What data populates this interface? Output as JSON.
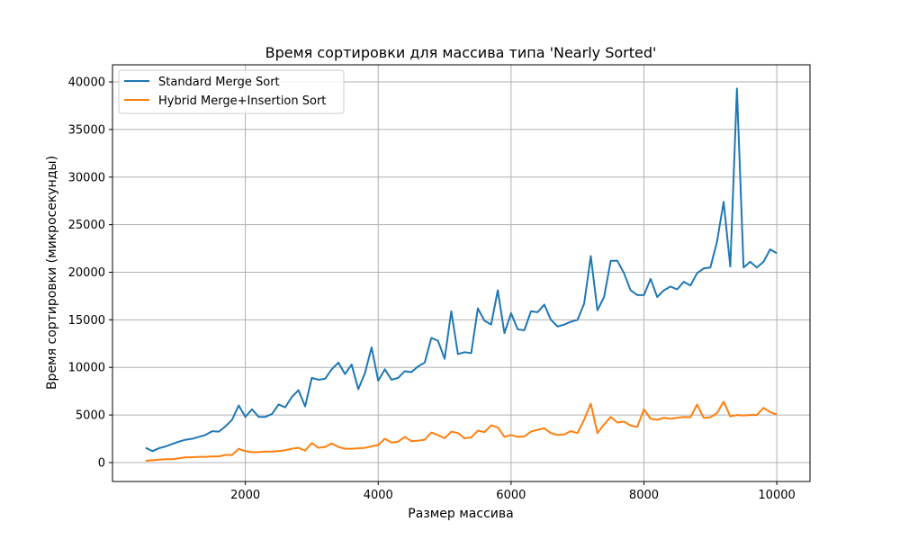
{
  "chart_data": {
    "type": "line",
    "title": "Время сортировки для массива типа 'Nearly Sorted'",
    "xlabel": "Размер массива",
    "ylabel": "Время сортировки (микросекунды)",
    "xlim": [
      0,
      10500
    ],
    "ylim": [
      -1990,
      41800
    ],
    "xticks": [
      2000,
      4000,
      6000,
      8000,
      10000
    ],
    "yticks": [
      0,
      5000,
      10000,
      15000,
      20000,
      25000,
      30000,
      35000,
      40000
    ],
    "grid": true,
    "legend_position": "top-left",
    "x": [
      500,
      600,
      700,
      800,
      900,
      1000,
      1100,
      1200,
      1300,
      1400,
      1500,
      1600,
      1700,
      1800,
      1900,
      2000,
      2100,
      2200,
      2300,
      2400,
      2500,
      2600,
      2700,
      2800,
      2900,
      3000,
      3100,
      3200,
      3300,
      3400,
      3500,
      3600,
      3700,
      3800,
      3900,
      4000,
      4100,
      4200,
      4300,
      4400,
      4500,
      4600,
      4700,
      4800,
      4900,
      5000,
      5100,
      5200,
      5300,
      5400,
      5500,
      5600,
      5700,
      5800,
      5900,
      6000,
      6100,
      6200,
      6300,
      6400,
      6500,
      6600,
      6700,
      6800,
      6900,
      7000,
      7100,
      7200,
      7300,
      7400,
      7500,
      7600,
      7700,
      7800,
      7900,
      8000,
      8100,
      8200,
      8300,
      8400,
      8500,
      8600,
      8700,
      8800,
      8900,
      9000,
      9100,
      9200,
      9300,
      9400,
      9500,
      9600,
      9700,
      9800,
      9900,
      10000
    ],
    "series": [
      {
        "name": "Standard Merge Sort",
        "color": "#1f77b4",
        "values": [
          1550,
          1200,
          1500,
          1700,
          1950,
          2200,
          2400,
          2500,
          2700,
          2900,
          3300,
          3250,
          3800,
          4500,
          6000,
          4800,
          5600,
          4800,
          4800,
          5100,
          6100,
          5800,
          6900,
          7600,
          5900,
          8900,
          8700,
          8800,
          9800,
          10500,
          9300,
          10300,
          7700,
          9400,
          12100,
          8600,
          9800,
          8700,
          8900,
          9600,
          9500,
          10100,
          10500,
          13100,
          12800,
          10900,
          15900,
          11400,
          11600,
          11500,
          16200,
          14900,
          14500,
          18100,
          13600,
          15700,
          14000,
          13900,
          15900,
          15800,
          16600,
          15000,
          14300,
          14500,
          14800,
          15000,
          16700,
          21700,
          16000,
          17400,
          21200,
          21200,
          19900,
          18100,
          17600,
          17600,
          19300,
          17400,
          18100,
          18500,
          18200,
          19000,
          18600,
          19900,
          20400,
          20500,
          23200,
          27400,
          20600,
          39300,
          20500,
          21100,
          20500,
          21100,
          22400,
          22000
        ]
      },
      {
        "name": "Hybrid Merge+Insertion Sort",
        "color": "#ff7f0e",
        "values": [
          200,
          250,
          300,
          350,
          350,
          450,
          550,
          550,
          600,
          600,
          650,
          650,
          800,
          800,
          1450,
          1200,
          1100,
          1100,
          1150,
          1150,
          1200,
          1300,
          1450,
          1550,
          1250,
          2050,
          1550,
          1650,
          2000,
          1650,
          1450,
          1450,
          1500,
          1550,
          1700,
          1850,
          2500,
          2100,
          2200,
          2700,
          2250,
          2300,
          2400,
          3150,
          2900,
          2550,
          3250,
          3100,
          2550,
          2650,
          3350,
          3200,
          3900,
          3700,
          2700,
          2900,
          2700,
          2750,
          3250,
          3450,
          3600,
          3100,
          2900,
          2950,
          3300,
          3100,
          4500,
          6200,
          3100,
          4000,
          4800,
          4200,
          4300,
          3900,
          3750,
          5600,
          4600,
          4500,
          4700,
          4600,
          4700,
          4800,
          4750,
          6100,
          4700,
          4750,
          5200,
          6400,
          4850,
          5000,
          4950,
          5000,
          5000,
          5750,
          5300,
          5050
        ]
      }
    ]
  }
}
